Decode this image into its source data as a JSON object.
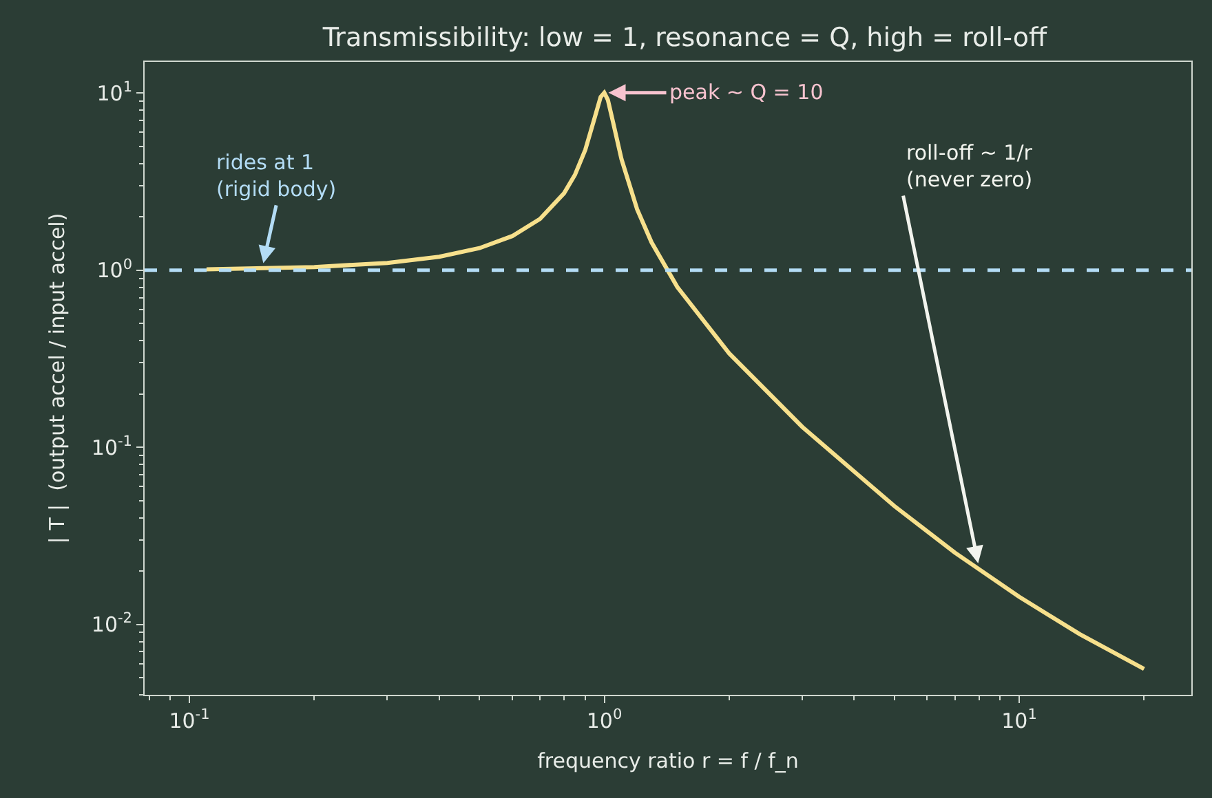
{
  "chart_data": {
    "type": "line",
    "title": "Transmissibility: low = 1, resonance = Q, high = roll-off",
    "xlabel": "frequency ratio r = f / f_n",
    "ylabel": "| T |  (output accel / input accel)",
    "x": [
      0.11,
      0.2,
      0.3,
      0.4,
      0.5,
      0.6,
      0.7,
      0.8,
      0.85,
      0.9,
      0.95,
      0.98,
      1.0,
      1.02,
      1.05,
      1.1,
      1.2,
      1.3,
      1.5,
      2,
      3,
      5,
      7,
      10,
      14,
      20
    ],
    "series": [
      {
        "color": "#f7e08c",
        "values": [
          1.012,
          1.042,
          1.099,
          1.19,
          1.332,
          1.558,
          1.947,
          2.72,
          3.46,
          4.78,
          7.38,
          9.51,
          10.05,
          9.16,
          6.85,
          4.24,
          2.21,
          1.436,
          0.803,
          0.339,
          0.1304,
          0.0466,
          0.0254,
          0.0143,
          0.0088,
          0.0056
        ]
      }
    ],
    "log": "xy",
    "xlim": [
      0.078,
      26
    ],
    "ylim": [
      0.004,
      15
    ],
    "xticks": [
      {
        "value": 0.1,
        "label": "10$^{-1}$"
      },
      {
        "value": 1,
        "label": "10$^{0}$"
      },
      {
        "value": 10,
        "label": "10$^{1}$"
      }
    ],
    "yticks": [
      {
        "value": 0.01,
        "label": "10$^{-2}$"
      },
      {
        "value": 0.1,
        "label": "10$^{-1}$"
      },
      {
        "value": 1,
        "label": "10$^{0}$"
      },
      {
        "value": 10,
        "label": "10$^{1}$"
      }
    ],
    "ref_lines": [
      {
        "axis": "y",
        "value": 1,
        "color": "#b3dcf5",
        "line_style": "dashed"
      }
    ],
    "annotations": [
      {
        "text": "peak ~ Q = 10",
        "x": 1.0,
        "y": 10.05
      },
      {
        "text": "rides at 1\n(rigid body)",
        "x": 0.15,
        "y": 1.04
      },
      {
        "text": "roll-off ~ 1/r\n(never zero)",
        "x": 8,
        "y": 0.021
      }
    ],
    "grid": false,
    "line_style": "solid",
    "marker": "none"
  }
}
